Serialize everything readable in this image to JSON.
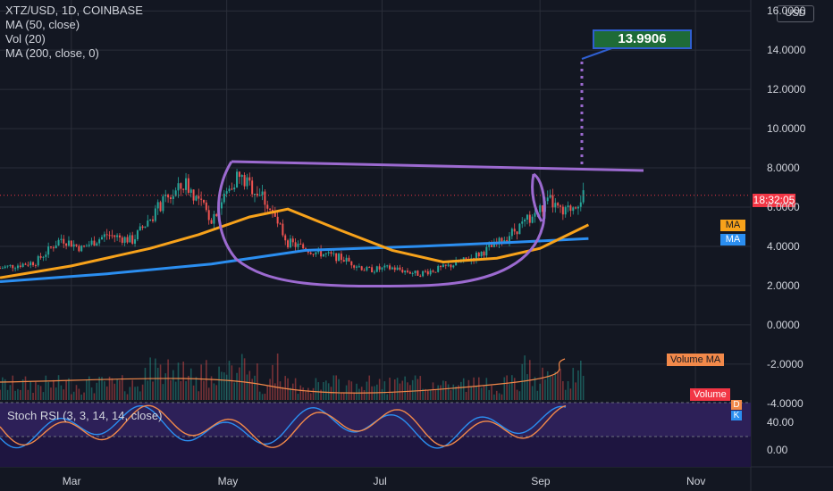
{
  "chart_data": {
    "type": "candlestick",
    "title": "XTZ/USD, 1D, COINBASE",
    "indicators": [
      "MA (50, close)",
      "Vol (20)",
      "MA (200, close, 0)"
    ],
    "currency_button": "USD",
    "x_labels": [
      "Mar",
      "May",
      "Jul",
      "Sep",
      "Nov"
    ],
    "y_ticks": [
      "16.0000",
      "14.0000",
      "12.0000",
      "10.0000",
      "8.0000",
      "6.0000",
      "4.0000",
      "2.0000",
      "0.0000",
      "-2.0000",
      "-4.0000"
    ],
    "ylim": [
      -4.6,
      16.6
    ],
    "target_label": "13.9906",
    "current_price_time": "18:32:05",
    "ma_labels": [
      "MA",
      "MA"
    ],
    "volume_ma_label": "Volume MA",
    "volume_label": "Volume",
    "stoch_rsi": {
      "label": "Stoch RSI (3, 3, 14, 14, close)",
      "ticks": [
        "40.00",
        "0.00"
      ],
      "d_label": "D",
      "k_label": "K"
    },
    "colors": {
      "up": "#26a69a",
      "down": "#ef5350",
      "ma50": "#f7a21b",
      "ma200": "#2b8ef0",
      "pattern": "#9c6ad0",
      "target_box": "#1e6b37",
      "price_tag": "#f23645"
    },
    "close_series": [
      {
        "date": "2021-02-01",
        "value": 2.9
      },
      {
        "date": "2021-02-15",
        "value": 3.2
      },
      {
        "date": "2021-02-25",
        "value": 4.4
      },
      {
        "date": "2021-03-05",
        "value": 3.9
      },
      {
        "date": "2021-03-15",
        "value": 4.6
      },
      {
        "date": "2021-03-25",
        "value": 4.3
      },
      {
        "date": "2021-04-05",
        "value": 6.1
      },
      {
        "date": "2021-04-15",
        "value": 7.2
      },
      {
        "date": "2021-04-25",
        "value": 5.4
      },
      {
        "date": "2021-05-05",
        "value": 7.6
      },
      {
        "date": "2021-05-15",
        "value": 6.6
      },
      {
        "date": "2021-05-25",
        "value": 4.2
      },
      {
        "date": "2021-06-05",
        "value": 3.7
      },
      {
        "date": "2021-06-15",
        "value": 3.4
      },
      {
        "date": "2021-06-25",
        "value": 2.8
      },
      {
        "date": "2021-07-05",
        "value": 2.9
      },
      {
        "date": "2021-07-15",
        "value": 2.6
      },
      {
        "date": "2021-07-25",
        "value": 2.9
      },
      {
        "date": "2021-08-05",
        "value": 3.4
      },
      {
        "date": "2021-08-15",
        "value": 4.1
      },
      {
        "date": "2021-08-25",
        "value": 5.1
      },
      {
        "date": "2021-09-05",
        "value": 6.3
      },
      {
        "date": "2021-09-10",
        "value": 5.6
      },
      {
        "date": "2021-09-18",
        "value": 6.6
      }
    ],
    "ma50_series": [
      {
        "date": "2021-02-01",
        "value": 2.4
      },
      {
        "date": "2021-03-01",
        "value": 3.0
      },
      {
        "date": "2021-04-01",
        "value": 3.9
      },
      {
        "date": "2021-04-20",
        "value": 4.6
      },
      {
        "date": "2021-05-10",
        "value": 5.5
      },
      {
        "date": "2021-05-25",
        "value": 5.9
      },
      {
        "date": "2021-06-15",
        "value": 4.8
      },
      {
        "date": "2021-07-05",
        "value": 3.8
      },
      {
        "date": "2021-07-25",
        "value": 3.2
      },
      {
        "date": "2021-08-15",
        "value": 3.4
      },
      {
        "date": "2021-09-01",
        "value": 3.9
      },
      {
        "date": "2021-09-20",
        "value": 5.1
      }
    ],
    "ma200_series": [
      {
        "date": "2021-02-01",
        "value": 2.2
      },
      {
        "date": "2021-03-15",
        "value": 2.6
      },
      {
        "date": "2021-04-25",
        "value": 3.1
      },
      {
        "date": "2021-06-01",
        "value": 3.8
      },
      {
        "date": "2021-07-15",
        "value": 4.0
      },
      {
        "date": "2021-08-20",
        "value": 4.2
      },
      {
        "date": "2021-09-20",
        "value": 4.4
      }
    ]
  }
}
